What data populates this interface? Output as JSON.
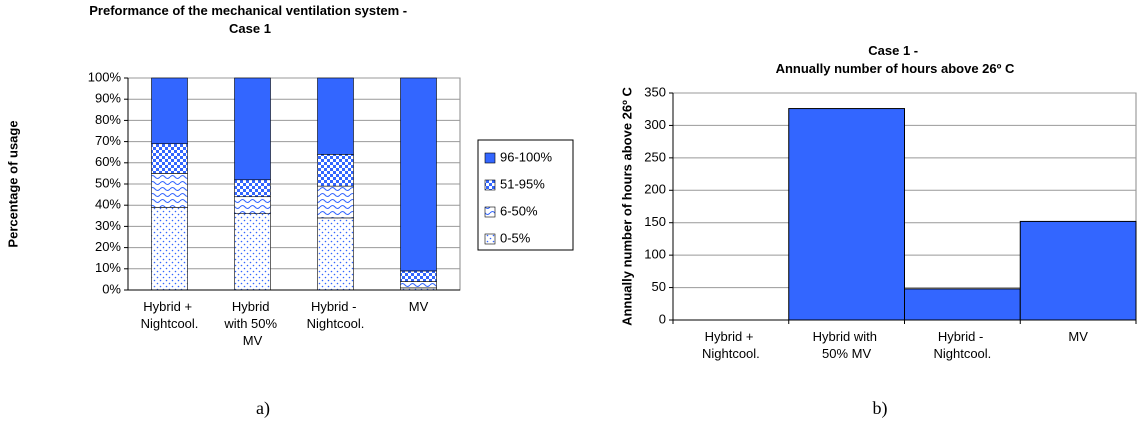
{
  "chart_data": [
    {
      "type": "stacked_bar",
      "title": "Preformance of the mechanical ventilation system - Case 1",
      "y_label": "Percentage of usage",
      "categories": [
        "Hybrid + Nightcool.",
        "Hybrid with 50% MV",
        "Hybrid - Nightcool.",
        "MV"
      ],
      "series": [
        {
          "name": "0-5%",
          "color": "#3366ff",
          "pattern": "dots",
          "values": [
            39,
            36,
            34,
            1
          ]
        },
        {
          "name": "6-50%",
          "color": "#3366ff",
          "pattern": "waves",
          "values": [
            16,
            8,
            15,
            3
          ]
        },
        {
          "name": "51-95%",
          "color": "#3366ff",
          "pattern": "checks",
          "values": [
            14,
            8,
            15,
            5
          ]
        },
        {
          "name": "96-100%",
          "color": "#3366ff",
          "pattern": "solid",
          "values": [
            31,
            48,
            36,
            91
          ]
        }
      ],
      "ylim": [
        0,
        100
      ],
      "yticks": [
        {
          "value": 0,
          "label": "0%"
        },
        {
          "value": 10,
          "label": "10%"
        },
        {
          "value": 20,
          "label": "20%"
        },
        {
          "value": 30,
          "label": "30%"
        },
        {
          "value": 40,
          "label": "40%"
        },
        {
          "value": 50,
          "label": "50%"
        },
        {
          "value": 60,
          "label": "60%"
        },
        {
          "value": 70,
          "label": "70%"
        },
        {
          "value": 80,
          "label": "80%"
        },
        {
          "value": 90,
          "label": "90%"
        },
        {
          "value": 100,
          "label": "100%"
        }
      ],
      "grid": true,
      "legend": "right"
    },
    {
      "type": "bar",
      "title": "Case 1 - Annually number of hours above 26º C",
      "y_label": "Annually number of hours above 26º C",
      "categories": [
        "Hybrid + Nightcool.",
        "Hybrid with 50% MV",
        "Hybrid - Nightcool.",
        "MV"
      ],
      "values": [
        0,
        326,
        48,
        152
      ],
      "color": "#3366ff",
      "ylim": [
        0,
        350
      ],
      "yticks": [
        0,
        50,
        100,
        150,
        200,
        250,
        300,
        350
      ],
      "grid": true
    }
  ],
  "captions": [
    "a)",
    "b)"
  ]
}
